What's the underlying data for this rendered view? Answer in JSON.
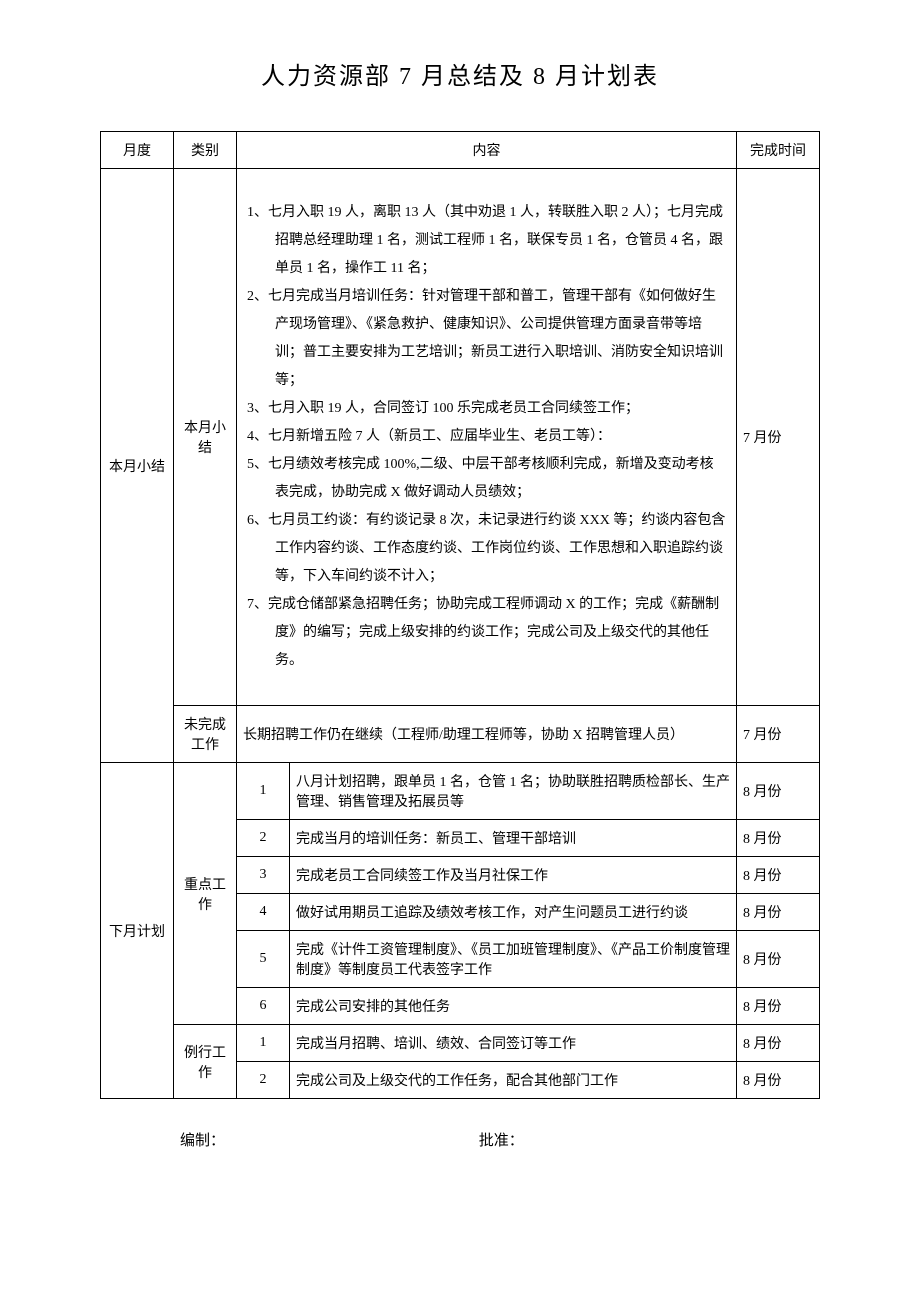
{
  "title": "人力资源部 7 月总结及 8 月计划表",
  "headers": {
    "month": "月度",
    "category": "类别",
    "content": "内容",
    "time": "完成时间"
  },
  "section1": {
    "month_label": "本月小结",
    "category1": "本月小结",
    "category2": "未完成工作",
    "summary_items": [
      "1、七月入职 19 人，离职 13 人（其中劝退 1 人，转联胜入职 2 人）；七月完成招聘总经理助理 1 名，测试工程师 1 名，联保专员 1 名，仓管员 4 名，跟单员 1 名，操作工 11 名；",
      "2、七月完成当月培训任务：针对管理干部和普工，管理干部有《如何做好生产现场管理》、《紧急救护、健康知识》、公司提供管理方面录音带等培训；普工主要安排为工艺培训；新员工进行入职培训、消防安全知识培训等；",
      "3、七月入职 19 人，合同签订 100 乐完成老员工合同续签工作；",
      "4、七月新增五险 7 人（新员工、应届毕业生、老员工等）：",
      "5、七月绩效考核完成 100%,二级、中层干部考核顺利完成，新增及变动考核表完成，协助完成 X 做好调动人员绩效；",
      "6、七月员工约谈：有约谈记录 8 次，未记录进行约谈 XXX 等；约谈内容包含工作内容约谈、工作态度约谈、工作岗位约谈、工作思想和入职追踪约谈等，下入车间约谈不计入；",
      "7、完成仓储部紧急招聘任务；协助完成工程师调动 X 的工作；完成《薪酬制度》的编写；完成上级安排的约谈工作；完成公司及上级交代的其他任务。"
    ],
    "summary_time": "7 月份",
    "incomplete_content": "长期招聘工作仍在继续（工程师/助理工程师等，协助 X 招聘管理人员）",
    "incomplete_time": "7 月份"
  },
  "section2": {
    "month_label": "下月计划",
    "category1": "重点工作",
    "category2": "例行工作",
    "key_tasks": [
      {
        "num": "1",
        "content": "八月计划招聘，跟单员 1 名，仓管 1 名；协助联胜招聘质检部长、生产管理、销售管理及拓展员等",
        "time": "8 月份"
      },
      {
        "num": "2",
        "content": "完成当月的培训任务：新员工、管理干部培训",
        "time": "8 月份"
      },
      {
        "num": "3",
        "content": "完成老员工合同续签工作及当月社保工作",
        "time": "8 月份"
      },
      {
        "num": "4",
        "content": "做好试用期员工追踪及绩效考核工作，对产生问题员工进行约谈",
        "time": "8 月份"
      },
      {
        "num": "5",
        "content": "完成《计件工资管理制度》、《员工加班管理制度》、《产品工价制度管理制度》等制度员工代表签字工作",
        "time": "8 月份"
      },
      {
        "num": "6",
        "content": "完成公司安排的其他任务",
        "time": "8 月份"
      }
    ],
    "routine_tasks": [
      {
        "num": "1",
        "content": "完成当月招聘、培训、绩效、合同签订等工作",
        "time": "8 月份"
      },
      {
        "num": "2",
        "content": "完成公司及上级交代的工作任务，配合其他部门工作",
        "time": "8 月份"
      }
    ]
  },
  "footer": {
    "prepared": "编制：",
    "approved": "批准："
  }
}
